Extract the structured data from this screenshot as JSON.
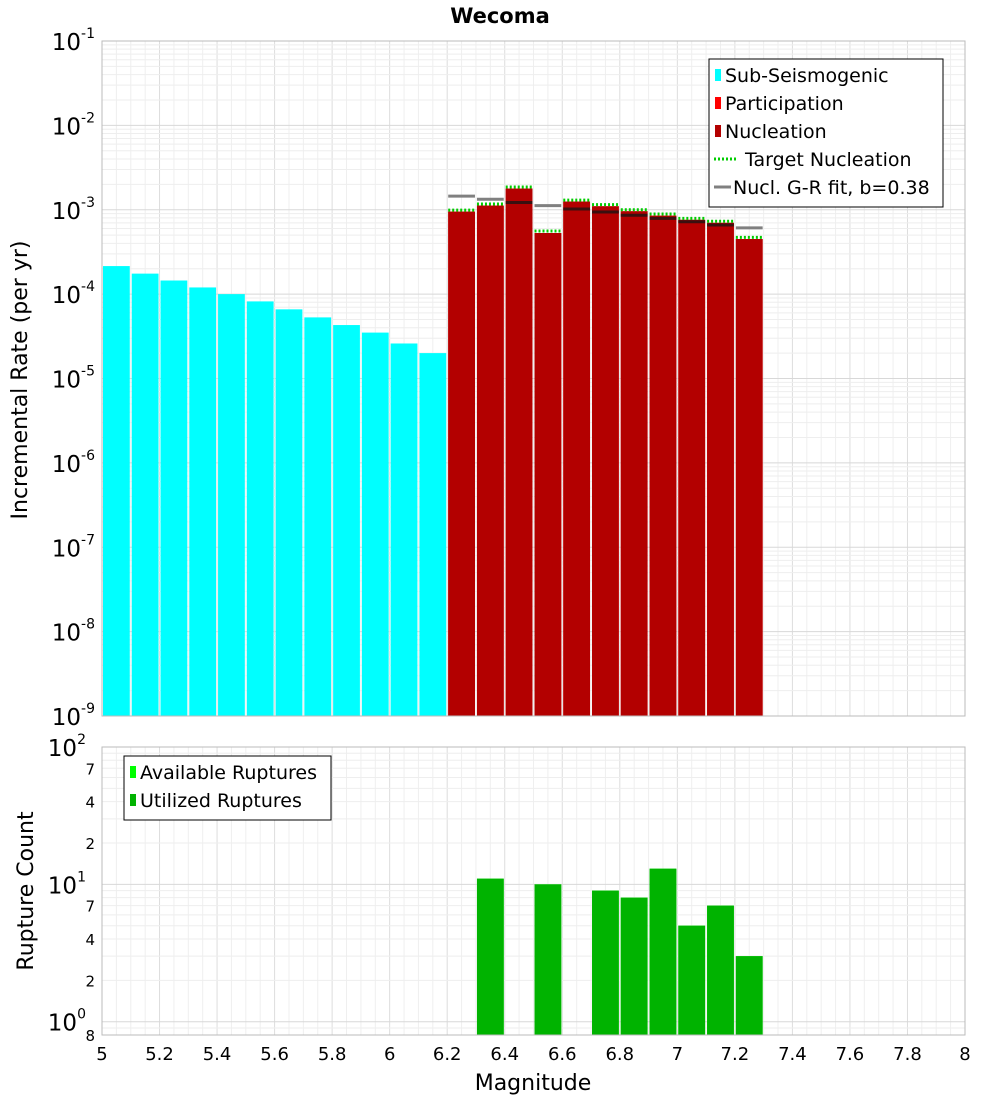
{
  "title": "Wecoma",
  "colors": {
    "sub_seismogenic": "#00ffff",
    "participation": "#ff0000",
    "nucleation": "#b30000",
    "target_nucleation": "#00cc00",
    "gr_fit": "#808080",
    "available_ruptures": "#00ff00",
    "utilized_ruptures": "#00b300"
  },
  "chart_data": [
    {
      "type": "bar",
      "name": "rates",
      "xlabel": "Magnitude",
      "ylabel": "Incremental Rate (per yr)",
      "xlim": [
        5,
        8
      ],
      "ylim": [
        1e-09,
        0.1
      ],
      "yscale": "log",
      "y_tick_labels": [
        {
          "base": "10",
          "exp": "-9",
          "value": 1e-09
        },
        {
          "base": "10",
          "exp": "-8",
          "value": 1e-08
        },
        {
          "base": "10",
          "exp": "-7",
          "value": 1e-07
        },
        {
          "base": "10",
          "exp": "-6",
          "value": 1e-06
        },
        {
          "base": "10",
          "exp": "-5",
          "value": 1e-05
        },
        {
          "base": "10",
          "exp": "-4",
          "value": 0.0001
        },
        {
          "base": "10",
          "exp": "-3",
          "value": 0.001
        },
        {
          "base": "10",
          "exp": "-2",
          "value": 0.01
        },
        {
          "base": "10",
          "exp": "-1",
          "value": 0.1
        }
      ],
      "grid": true,
      "legend_position": "top-right",
      "bar_width": 0.1,
      "series": [
        {
          "name": "Sub-Seismogenic",
          "style": "bar",
          "x": [
            5.05,
            5.15,
            5.25,
            5.35,
            5.45,
            5.55,
            5.65,
            5.75,
            5.85,
            5.95,
            6.05,
            6.15
          ],
          "values": [
            0.000215,
            0.000175,
            0.000145,
            0.00012,
            0.0001,
            8.2e-05,
            6.6e-05,
            5.3e-05,
            4.3e-05,
            3.5e-05,
            2.6e-05,
            2e-05
          ]
        },
        {
          "name": "Participation",
          "style": "bar",
          "x": [
            6.25,
            6.35,
            6.45,
            6.55,
            6.65,
            6.75,
            6.85,
            6.95,
            7.05,
            7.15,
            7.25
          ],
          "values": [
            0.00095,
            0.00112,
            0.00178,
            0.00053,
            0.00125,
            0.0011,
            0.00096,
            0.00085,
            0.00076,
            0.0007,
            0.00045
          ]
        },
        {
          "name": "Nucleation",
          "style": "bar",
          "x": [
            6.25,
            6.35,
            6.45,
            6.55,
            6.65,
            6.75,
            6.85,
            6.95,
            7.05,
            7.15,
            7.25
          ],
          "values": [
            0.00095,
            0.00112,
            0.00178,
            0.00053,
            0.00125,
            0.0011,
            0.00096,
            0.00085,
            0.00076,
            0.0007,
            0.00045
          ]
        },
        {
          "name": "Target Nucleation",
          "style": "dotted-step",
          "x": [
            6.25,
            6.35,
            6.45,
            6.55,
            6.65,
            6.75,
            6.85,
            6.95,
            7.05,
            7.15,
            7.25
          ],
          "values": [
            0.00099,
            0.00117,
            0.00186,
            0.00056,
            0.0013,
            0.00115,
            0.001,
            0.00089,
            0.00079,
            0.00073,
            0.00047
          ]
        },
        {
          "name": "Nucl. G-R fit, b=0.38",
          "style": "step",
          "x": [
            6.25,
            6.35,
            6.45,
            6.55,
            6.65,
            6.75,
            6.85,
            6.95,
            7.05,
            7.15,
            7.25
          ],
          "values": [
            0.00145,
            0.00133,
            0.00122,
            0.00112,
            0.00102,
            0.00094,
            0.00086,
            0.00079,
            0.00072,
            0.00066,
            0.00061
          ]
        }
      ]
    },
    {
      "type": "bar",
      "name": "rupture_counts",
      "xlabel": "Magnitude",
      "ylabel": "Rupture Count",
      "xlim": [
        5,
        8
      ],
      "ylim": [
        0.8,
        100
      ],
      "yscale": "log",
      "x_tick_labels": [
        "5",
        "5.2",
        "5.4",
        "5.6",
        "5.8",
        "6",
        "6.2",
        "6.4",
        "6.6",
        "6.8",
        "7",
        "7.2",
        "7.4",
        "7.6",
        "7.8",
        "8"
      ],
      "y_tick_labels": [
        {
          "base": "10",
          "exp": "0",
          "value": 1
        },
        {
          "base": "10",
          "exp": "1",
          "value": 10
        },
        {
          "base": "10",
          "exp": "2",
          "value": 100
        }
      ],
      "y_minor_labels": [
        {
          "label": "8",
          "value": 0.8
        },
        {
          "label": "2",
          "value": 2
        },
        {
          "label": "4",
          "value": 4
        },
        {
          "label": "7",
          "value": 7
        },
        {
          "label": "2",
          "value": 20
        },
        {
          "label": "4",
          "value": 40
        },
        {
          "label": "7",
          "value": 70
        }
      ],
      "grid": true,
      "legend_position": "top-left",
      "bar_width": 0.1,
      "series": [
        {
          "name": "Available Ruptures",
          "x": [
            6.35,
            6.55,
            6.75,
            6.85,
            6.95,
            7.05,
            7.15,
            7.25
          ],
          "values": [
            11,
            10,
            9,
            8,
            13,
            5,
            7,
            3
          ]
        },
        {
          "name": "Utilized Ruptures",
          "x": [
            6.35,
            6.55,
            6.75,
            6.85,
            6.95,
            7.05,
            7.15,
            7.25
          ],
          "values": [
            11,
            10,
            9,
            8,
            13,
            5,
            7,
            3
          ]
        }
      ]
    }
  ]
}
